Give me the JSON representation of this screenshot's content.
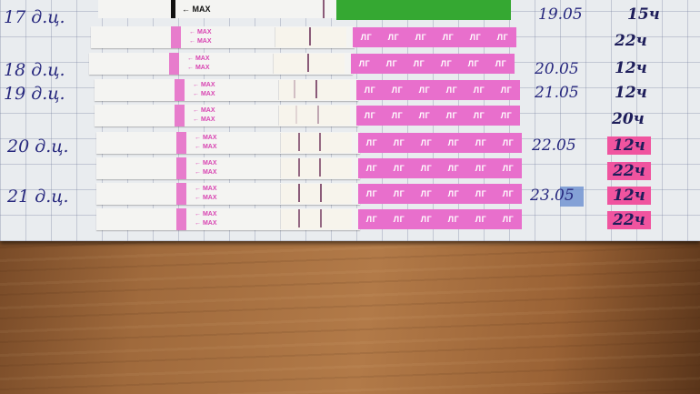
{
  "top_strip": {
    "label": "← MAX",
    "handle_color": "#35a832"
  },
  "strips": [
    {
      "max_label": "← MAX",
      "handle_text": "ЛГ"
    },
    {
      "max_label": "← MAX",
      "handle_text": "ЛГ"
    },
    {
      "max_label": "← MAX",
      "handle_text": "ЛГ"
    },
    {
      "max_label": "← MAX",
      "handle_text": "ЛГ"
    },
    {
      "max_label": "← MAX",
      "handle_text": "ЛГ"
    },
    {
      "max_label": "← MAX",
      "handle_text": "ЛГ"
    },
    {
      "max_label": "← MAX",
      "handle_text": "ЛГ"
    },
    {
      "max_label": "← MAX",
      "handle_text": "ЛГ"
    }
  ],
  "cycle_days": [
    "17 д.ц.",
    "18 д.ц.",
    "19 д.ц.",
    "20 д.ц.",
    "21 д.ц."
  ],
  "dates": [
    "19.05",
    "20.05",
    "21.05",
    "22.05",
    "23.05"
  ],
  "times": [
    {
      "text": "15ч",
      "highlighted": false
    },
    {
      "text": "22ч",
      "highlighted": false
    },
    {
      "text": "12ч",
      "highlighted": false
    },
    {
      "text": "12ч",
      "highlighted": false
    },
    {
      "text": "20ч",
      "highlighted": false
    },
    {
      "text": "12ч",
      "highlighted": true
    },
    {
      "text": "22ч",
      "highlighted": true
    },
    {
      "text": "12ч",
      "highlighted": true
    },
    {
      "text": "22ч",
      "highlighted": true
    }
  ],
  "colors": {
    "ink": "#27287e",
    "highlighter": "#f0549f",
    "strip_pink": "#e86fcc",
    "wood": "#a06a3c"
  }
}
